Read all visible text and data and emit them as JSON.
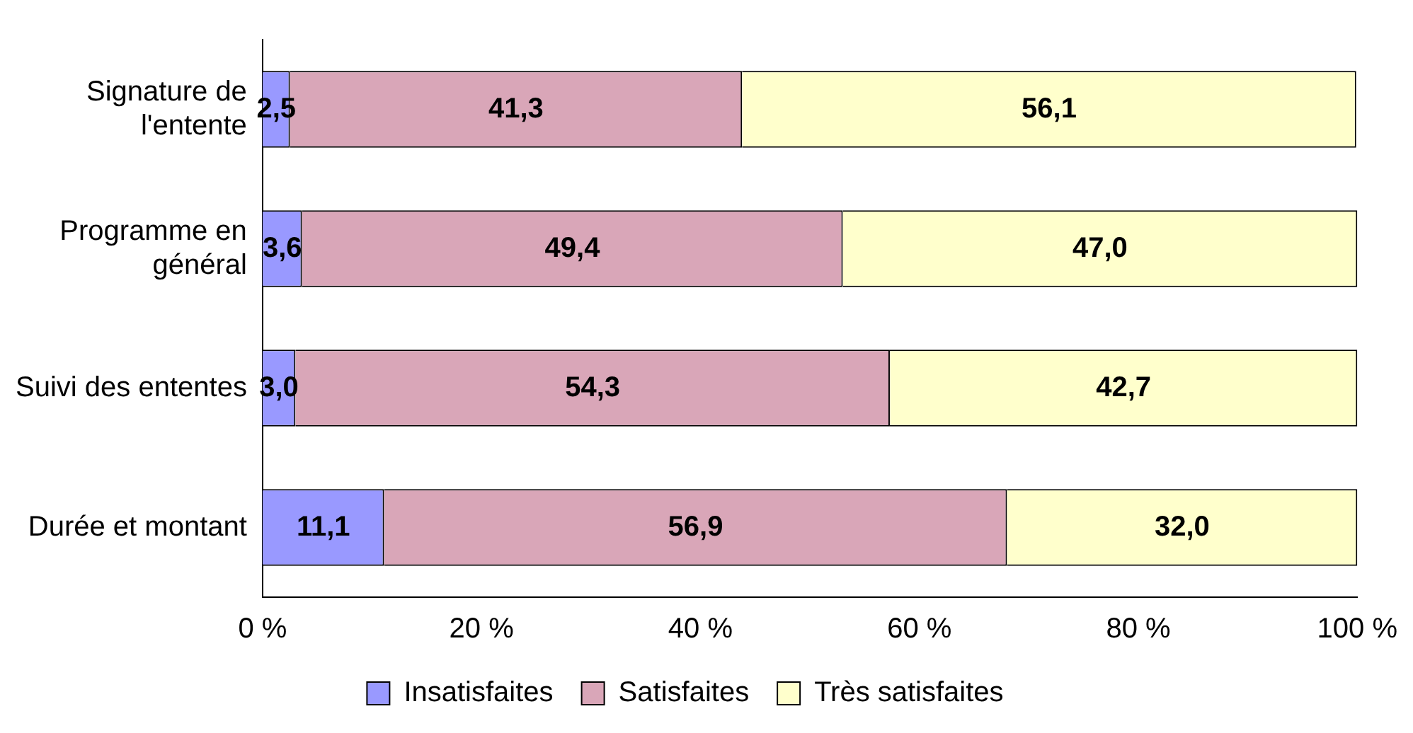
{
  "chart_data": {
    "type": "bar",
    "orientation": "horizontal",
    "stacked": true,
    "categories": [
      "Signature de l'entente",
      "Programme en général",
      "Suivi des ententes",
      "Durée et montant"
    ],
    "series": [
      {
        "name": "Insatisfaites",
        "color": "#9999ff",
        "values": [
          2.5,
          3.6,
          3.0,
          11.1
        ],
        "value_labels": [
          "2,5",
          "3,6",
          "3,0",
          "11,1"
        ]
      },
      {
        "name": "Satisfaites",
        "color": "#d9a6b8",
        "values": [
          41.3,
          49.4,
          54.3,
          56.9
        ],
        "value_labels": [
          "41,3",
          "49,4",
          "54,3",
          "56,9"
        ]
      },
      {
        "name": "Très satisfaites",
        "color": "#ffffcc",
        "values": [
          56.1,
          47.0,
          42.7,
          32.0
        ],
        "value_labels": [
          "56,1",
          "47,0",
          "42,7",
          "32,0"
        ]
      }
    ],
    "xlim": [
      0,
      100
    ],
    "xticks": [
      {
        "value": 0,
        "label": "0 %"
      },
      {
        "value": 20,
        "label": "20 %"
      },
      {
        "value": 40,
        "label": "40 %"
      },
      {
        "value": 60,
        "label": "60 %"
      },
      {
        "value": 80,
        "label": "80 %"
      },
      {
        "value": 100,
        "label": "100 %"
      }
    ],
    "grid": false,
    "legend": "bottom"
  }
}
